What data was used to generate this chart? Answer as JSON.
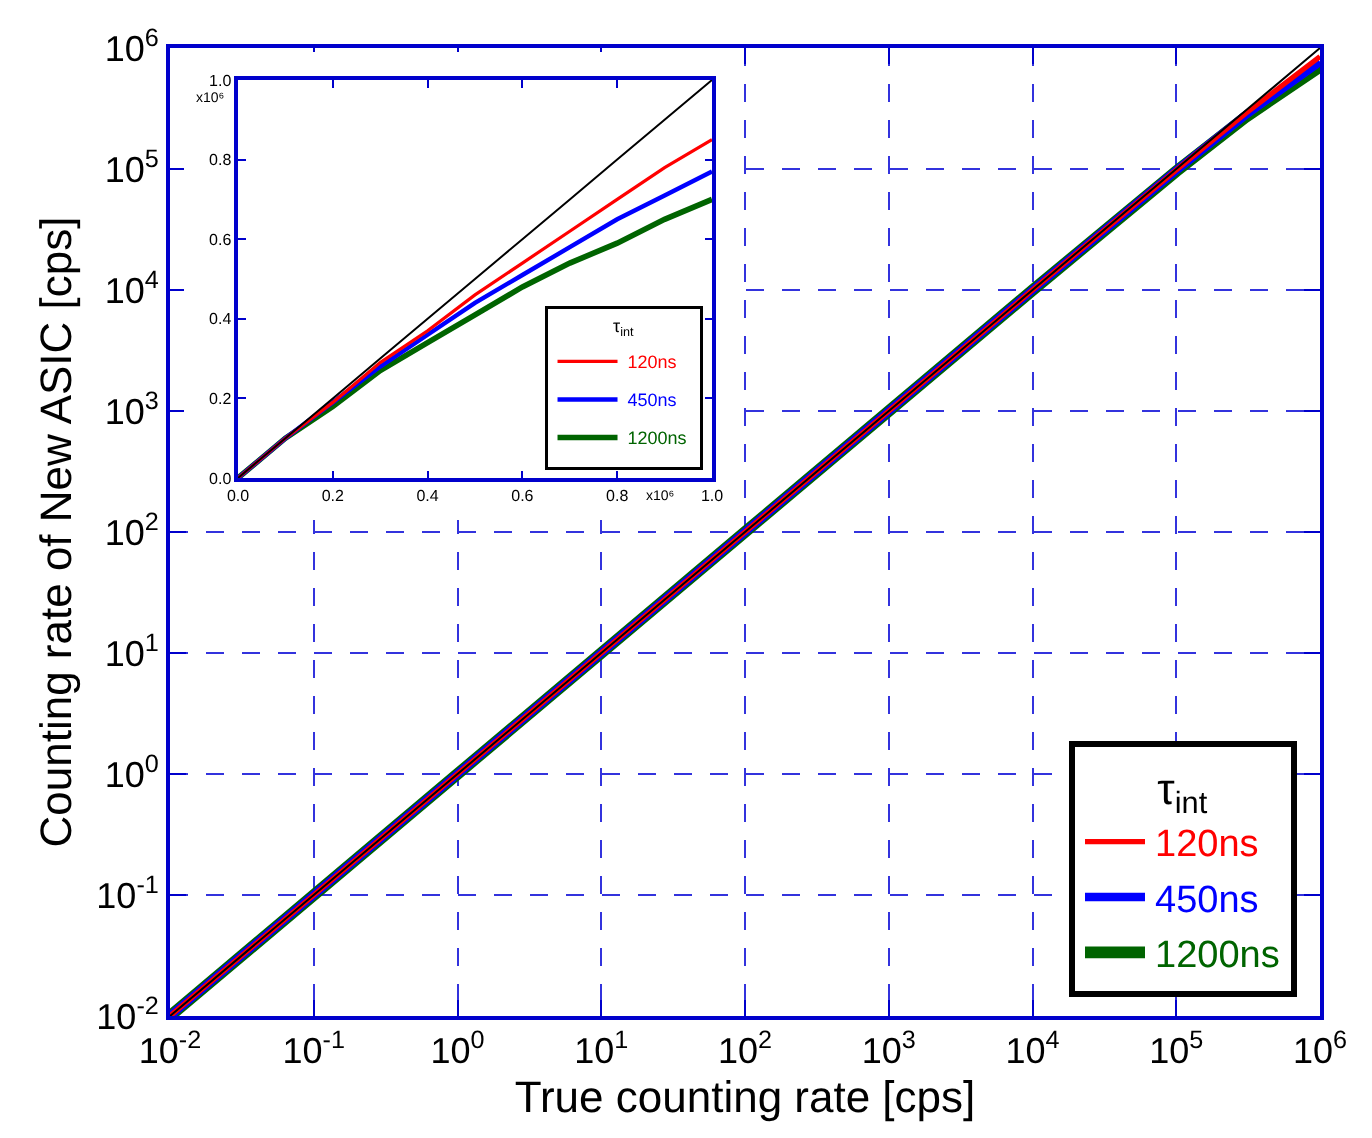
{
  "chart_data": [
    {
      "type": "line",
      "xlabel": "True counting rate [cps]",
      "ylabel": "Counting rate of New ASIC [cps]",
      "legend_title": "τ$_{int}$",
      "log": "xy",
      "grid": true,
      "legend": "bottom right",
      "line_style": "solid",
      "x": [
        0.01,
        1,
        100,
        10000,
        100000,
        300000,
        1000000
      ],
      "xlim": [
        0.01,
        1000000
      ],
      "ylim": [
        0.01,
        1000000
      ],
      "xticks": [
        {
          "value": 0.01,
          "label": "10$^{-2}$"
        },
        {
          "value": 0.1,
          "label": "10$^{-1}$"
        },
        {
          "value": 1,
          "label": "10$^{0}$"
        },
        {
          "value": 10,
          "label": "10$^{1}$"
        },
        {
          "value": 100,
          "label": "10$^{2}$"
        },
        {
          "value": 1000,
          "label": "10$^{3}$"
        },
        {
          "value": 10000,
          "label": "10$^{4}$"
        },
        {
          "value": 100000,
          "label": "10$^{5}$"
        },
        {
          "value": 1000000,
          "label": "10$^{6}$"
        }
      ],
      "yticks": [
        {
          "value": 0.01,
          "label": "10$^{-2}$"
        },
        {
          "value": 0.1,
          "label": "10$^{-1}$"
        },
        {
          "value": 1,
          "label": "10$^{0}$"
        },
        {
          "value": 10,
          "label": "10$^{1}$"
        },
        {
          "value": 100,
          "label": "10$^{2}$"
        },
        {
          "value": 1000,
          "label": "10$^{3}$"
        },
        {
          "value": 10000,
          "label": "10$^{4}$"
        },
        {
          "value": 100000,
          "label": "10$^{5}$"
        },
        {
          "value": 1000000,
          "label": "10$^{6}$"
        }
      ],
      "series": [
        {
          "color": "#000000",
          "values": [
            0.01,
            1,
            100,
            10000,
            100000,
            300000,
            1000000
          ]
        },
        {
          "name": "120ns",
          "color": "#ff0000",
          "values": [
            0.01,
            1,
            100,
            9980,
            98300,
            285000,
            850000
          ]
        },
        {
          "name": "450ns",
          "color": "#0000ff",
          "values": [
            0.01,
            1,
            100,
            9970,
            97200,
            276000,
            770000
          ]
        },
        {
          "name": "1200ns",
          "color": "#006400",
          "values": [
            0.01,
            1,
            100,
            9960,
            95900,
            266000,
            700000
          ]
        }
      ]
    },
    {
      "type": "line",
      "legend_title": "τ$_{int}$",
      "grid": false,
      "legend": "bottom right",
      "line_style": "solid",
      "annotations": [
        "x10⁶",
        "x10⁶"
      ],
      "x": [
        0,
        0.1,
        0.2,
        0.3,
        0.4,
        0.5,
        0.6,
        0.7,
        0.8,
        0.9,
        1.0
      ],
      "xlim": [
        0,
        1
      ],
      "ylim": [
        0,
        1
      ],
      "xticks": [
        {
          "value": 0,
          "label": "0.0"
        },
        {
          "value": 0.2,
          "label": "0.2"
        },
        {
          "value": 0.4,
          "label": "0.4"
        },
        {
          "value": 0.6,
          "label": "0.6"
        },
        {
          "value": 0.8,
          "label": "0.8"
        },
        {
          "value": 1,
          "label": "1.0"
        }
      ],
      "yticks": [
        {
          "value": 0,
          "label": "0.0"
        },
        {
          "value": 0.2,
          "label": "0.2"
        },
        {
          "value": 0.4,
          "label": "0.4"
        },
        {
          "value": 0.6,
          "label": "0.6"
        },
        {
          "value": 0.8,
          "label": "0.8"
        },
        {
          "value": 1,
          "label": "1.0"
        }
      ],
      "series": [
        {
          "color": "#000000",
          "values": [
            0,
            0.1,
            0.2,
            0.3,
            0.4,
            0.5,
            0.6,
            0.7,
            0.8,
            0.9,
            1.0
          ]
        },
        {
          "name": "120ns",
          "color": "#ff0000",
          "values": [
            0,
            0.1,
            0.19,
            0.29,
            0.37,
            0.46,
            0.54,
            0.62,
            0.7,
            0.78,
            0.85
          ]
        },
        {
          "name": "450ns",
          "color": "#0000ff",
          "values": [
            0,
            0.1,
            0.19,
            0.28,
            0.36,
            0.44,
            0.51,
            0.58,
            0.65,
            0.71,
            0.77
          ]
        },
        {
          "name": "1200ns",
          "color": "#006400",
          "values": [
            0,
            0.1,
            0.18,
            0.27,
            0.34,
            0.41,
            0.48,
            0.54,
            0.59,
            0.65,
            0.7
          ]
        }
      ]
    }
  ]
}
